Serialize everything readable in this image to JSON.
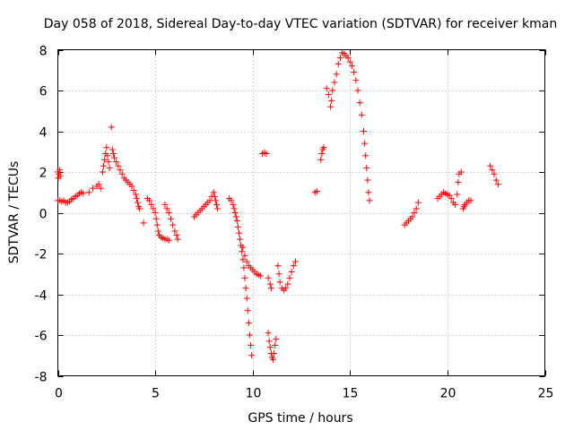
{
  "chart_data": {
    "type": "scatter",
    "title": "Day 058 of 2018, Sidereal Day-to-day VTEC variation (SDTVAR) for receiver kman",
    "xlabel": "GPS time / hours",
    "ylabel": "SDTVAR / TECUs",
    "xlim": [
      0,
      25
    ],
    "ylim": [
      -8,
      8
    ],
    "xticks": [
      "0",
      "5",
      "10",
      "15",
      "20",
      "25"
    ],
    "yticks": [
      "-8",
      "-6",
      "-4",
      "-2",
      "0",
      "2",
      "4",
      "6",
      "8"
    ],
    "xtick_values": [
      0,
      5,
      10,
      15,
      20,
      25
    ],
    "ytick_values": [
      -8,
      -6,
      -4,
      -2,
      0,
      2,
      4,
      6,
      8
    ],
    "grid": true,
    "marker": "+",
    "color": "#ff0000",
    "series": [
      {
        "name": "",
        "points": [
          [
            0.0,
            2.0
          ],
          [
            0.02,
            1.7
          ],
          [
            0.05,
            1.9
          ],
          [
            0.1,
            2.1
          ],
          [
            0.12,
            1.8
          ],
          [
            0.0,
            0.6
          ],
          [
            0.1,
            0.6
          ],
          [
            0.2,
            0.55
          ],
          [
            0.3,
            0.6
          ],
          [
            0.4,
            0.5
          ],
          [
            0.5,
            0.5
          ],
          [
            0.6,
            0.55
          ],
          [
            0.7,
            0.65
          ],
          [
            0.8,
            0.7
          ],
          [
            0.9,
            0.8
          ],
          [
            1.0,
            0.85
          ],
          [
            1.1,
            0.95
          ],
          [
            1.2,
            1.0
          ],
          [
            1.3,
            0.95
          ],
          [
            1.6,
            1.0
          ],
          [
            1.8,
            1.2
          ],
          [
            2.0,
            1.3
          ],
          [
            2.1,
            1.4
          ],
          [
            2.2,
            1.2
          ],
          [
            2.3,
            2.0
          ],
          [
            2.35,
            2.3
          ],
          [
            2.4,
            2.6
          ],
          [
            2.45,
            2.9
          ],
          [
            2.5,
            3.2
          ],
          [
            2.55,
            2.8
          ],
          [
            2.6,
            2.5
          ],
          [
            2.65,
            2.2
          ],
          [
            2.75,
            4.2
          ],
          [
            2.8,
            3.1
          ],
          [
            2.85,
            2.9
          ],
          [
            2.9,
            2.7
          ],
          [
            3.0,
            2.5
          ],
          [
            3.1,
            2.3
          ],
          [
            3.2,
            2.1
          ],
          [
            3.3,
            1.9
          ],
          [
            3.4,
            1.7
          ],
          [
            3.5,
            1.6
          ],
          [
            3.6,
            1.5
          ],
          [
            3.7,
            1.4
          ],
          [
            3.8,
            1.3
          ],
          [
            3.9,
            1.1
          ],
          [
            4.0,
            0.9
          ],
          [
            4.05,
            0.7
          ],
          [
            4.1,
            0.5
          ],
          [
            4.15,
            0.3
          ],
          [
            4.2,
            0.2
          ],
          [
            4.4,
            -0.5
          ],
          [
            4.6,
            0.7
          ],
          [
            4.7,
            0.6
          ],
          [
            4.8,
            0.4
          ],
          [
            4.9,
            0.2
          ],
          [
            5.0,
            0.0
          ],
          [
            5.05,
            -0.3
          ],
          [
            5.1,
            -0.6
          ],
          [
            5.15,
            -0.9
          ],
          [
            5.2,
            -1.1
          ],
          [
            5.3,
            -1.2
          ],
          [
            5.4,
            -1.25
          ],
          [
            5.5,
            -1.3
          ],
          [
            5.6,
            -1.3
          ],
          [
            5.7,
            -1.35
          ],
          [
            5.5,
            0.4
          ],
          [
            5.6,
            0.2
          ],
          [
            5.7,
            0.0
          ],
          [
            5.8,
            -0.3
          ],
          [
            5.9,
            -0.6
          ],
          [
            6.0,
            -0.9
          ],
          [
            6.1,
            -1.1
          ],
          [
            6.15,
            -1.3
          ],
          [
            7.0,
            -0.2
          ],
          [
            7.1,
            -0.1
          ],
          [
            7.2,
            0.0
          ],
          [
            7.3,
            0.1
          ],
          [
            7.4,
            0.2
          ],
          [
            7.5,
            0.3
          ],
          [
            7.6,
            0.4
          ],
          [
            7.7,
            0.5
          ],
          [
            7.8,
            0.6
          ],
          [
            7.9,
            0.8
          ],
          [
            8.0,
            1.0
          ],
          [
            8.05,
            0.8
          ],
          [
            8.1,
            0.6
          ],
          [
            8.15,
            0.4
          ],
          [
            8.2,
            0.2
          ],
          [
            8.8,
            0.7
          ],
          [
            8.9,
            0.6
          ],
          [
            9.0,
            0.4
          ],
          [
            9.05,
            0.2
          ],
          [
            9.1,
            0.0
          ],
          [
            9.15,
            -0.2
          ],
          [
            9.2,
            -0.4
          ],
          [
            9.25,
            -0.7
          ],
          [
            9.3,
            -1.0
          ],
          [
            9.35,
            -1.3
          ],
          [
            9.4,
            -1.6
          ],
          [
            9.45,
            -1.9
          ],
          [
            9.5,
            -2.3
          ],
          [
            9.55,
            -2.7
          ],
          [
            9.6,
            -3.2
          ],
          [
            9.65,
            -3.7
          ],
          [
            9.7,
            -4.2
          ],
          [
            9.75,
            -4.8
          ],
          [
            9.8,
            -5.4
          ],
          [
            9.85,
            -6.0
          ],
          [
            9.9,
            -6.5
          ],
          [
            9.95,
            -7.0
          ],
          [
            9.5,
            -1.7
          ],
          [
            9.6,
            -2.1
          ],
          [
            9.7,
            -2.4
          ],
          [
            9.8,
            -2.6
          ],
          [
            9.9,
            -2.7
          ],
          [
            10.0,
            -2.8
          ],
          [
            10.1,
            -2.9
          ],
          [
            10.2,
            -3.0
          ],
          [
            10.3,
            -3.05
          ],
          [
            10.4,
            -3.1
          ],
          [
            10.5,
            2.9
          ],
          [
            10.6,
            2.95
          ],
          [
            10.7,
            2.9
          ],
          [
            10.8,
            -5.9
          ],
          [
            10.85,
            -6.3
          ],
          [
            10.9,
            -6.6
          ],
          [
            10.95,
            -6.9
          ],
          [
            11.0,
            -7.1
          ],
          [
            11.05,
            -7.2
          ],
          [
            11.1,
            -6.9
          ],
          [
            11.15,
            -6.5
          ],
          [
            11.2,
            -6.2
          ],
          [
            10.8,
            -3.2
          ],
          [
            10.9,
            -3.5
          ],
          [
            10.95,
            -3.7
          ],
          [
            11.3,
            -2.6
          ],
          [
            11.35,
            -3.0
          ],
          [
            11.4,
            -3.4
          ],
          [
            11.5,
            -3.7
          ],
          [
            11.6,
            -3.8
          ],
          [
            11.7,
            -3.7
          ],
          [
            11.8,
            -3.5
          ],
          [
            11.9,
            -3.2
          ],
          [
            12.0,
            -2.9
          ],
          [
            12.1,
            -2.6
          ],
          [
            12.2,
            -2.4
          ],
          [
            13.2,
            1.0
          ],
          [
            13.3,
            1.05
          ],
          [
            13.5,
            2.6
          ],
          [
            13.55,
            2.9
          ],
          [
            13.6,
            3.1
          ],
          [
            13.65,
            3.2
          ],
          [
            13.8,
            6.1
          ],
          [
            13.9,
            5.8
          ],
          [
            14.0,
            5.2
          ],
          [
            14.05,
            5.5
          ],
          [
            14.1,
            6.0
          ],
          [
            14.2,
            6.4
          ],
          [
            14.3,
            6.8
          ],
          [
            14.4,
            7.3
          ],
          [
            14.5,
            7.6
          ],
          [
            14.6,
            7.85
          ],
          [
            14.7,
            7.8
          ],
          [
            14.8,
            7.7
          ],
          [
            14.9,
            7.6
          ],
          [
            15.0,
            7.4
          ],
          [
            15.1,
            7.2
          ],
          [
            15.2,
            6.9
          ],
          [
            15.3,
            6.5
          ],
          [
            15.4,
            6.0
          ],
          [
            15.5,
            5.4
          ],
          [
            15.6,
            4.8
          ],
          [
            15.7,
            4.0
          ],
          [
            15.75,
            3.4
          ],
          [
            15.8,
            2.8
          ],
          [
            15.85,
            2.2
          ],
          [
            15.9,
            1.6
          ],
          [
            15.95,
            1.0
          ],
          [
            16.0,
            0.6
          ],
          [
            17.8,
            -0.6
          ],
          [
            17.9,
            -0.5
          ],
          [
            18.0,
            -0.4
          ],
          [
            18.1,
            -0.3
          ],
          [
            18.2,
            -0.2
          ],
          [
            18.3,
            0.0
          ],
          [
            18.4,
            0.2
          ],
          [
            18.5,
            0.5
          ],
          [
            19.5,
            0.7
          ],
          [
            19.6,
            0.8
          ],
          [
            19.7,
            0.9
          ],
          [
            19.8,
            1.0
          ],
          [
            19.9,
            0.95
          ],
          [
            20.0,
            0.9
          ],
          [
            20.1,
            0.85
          ],
          [
            20.2,
            0.7
          ],
          [
            20.3,
            0.5
          ],
          [
            20.4,
            0.4
          ],
          [
            20.5,
            0.9
          ],
          [
            20.55,
            1.5
          ],
          [
            20.6,
            1.9
          ],
          [
            20.7,
            2.0
          ],
          [
            20.8,
            0.2
          ],
          [
            20.85,
            0.3
          ],
          [
            20.9,
            0.4
          ],
          [
            21.0,
            0.5
          ],
          [
            21.1,
            0.6
          ],
          [
            21.2,
            0.6
          ],
          [
            22.2,
            2.3
          ],
          [
            22.3,
            2.1
          ],
          [
            22.4,
            1.9
          ],
          [
            22.5,
            1.6
          ],
          [
            22.6,
            1.4
          ]
        ]
      }
    ]
  }
}
